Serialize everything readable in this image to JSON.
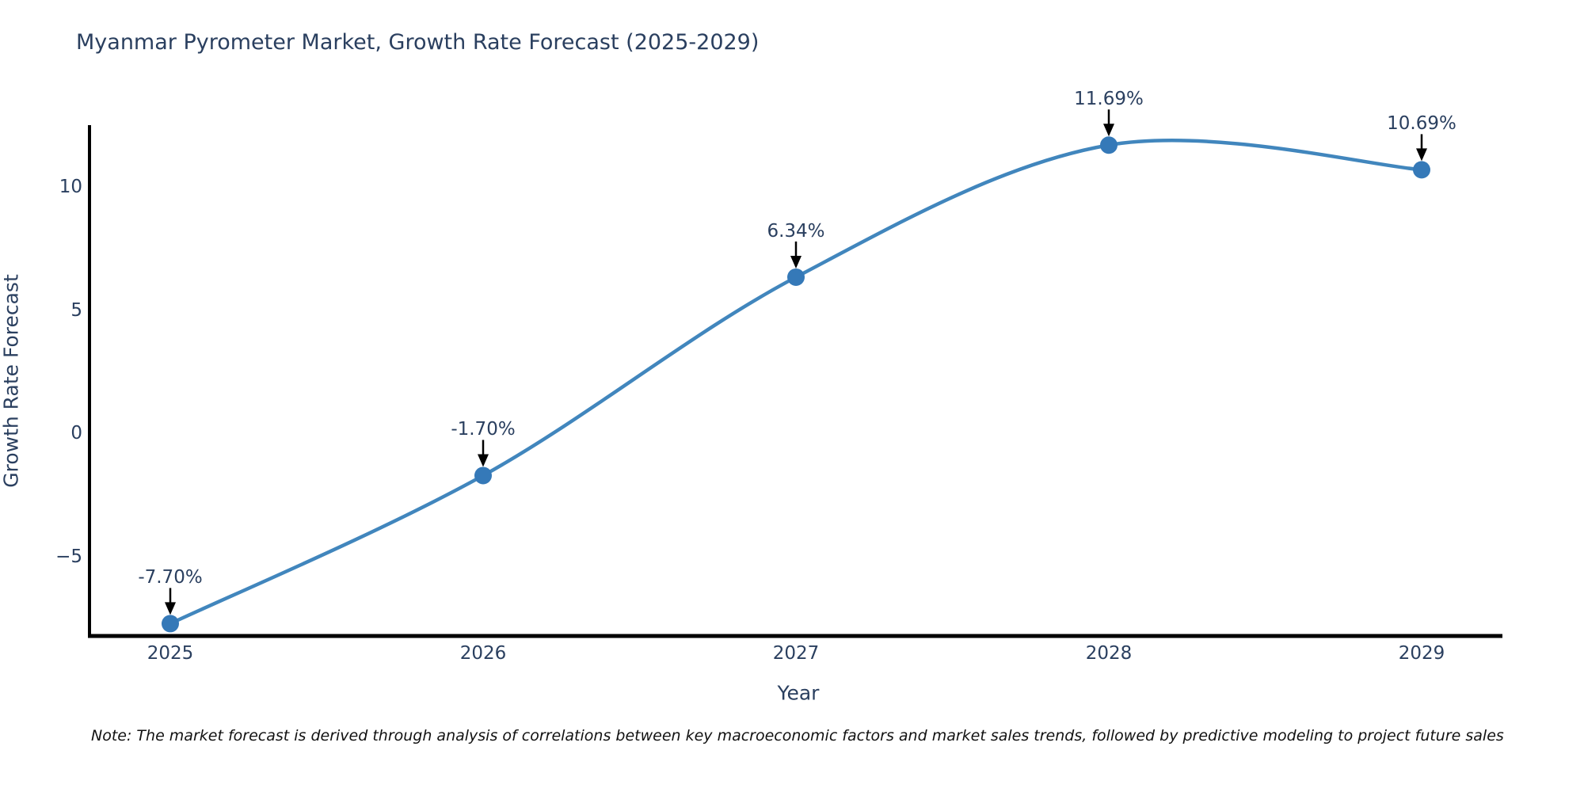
{
  "title": "Myanmar Pyrometer Market, Growth Rate Forecast (2025-2029)",
  "note": "Note: The market forecast is derived through analysis of correlations between key macroeconomic factors and market sales trends, followed by predictive modeling to project future sales",
  "chart_data": {
    "type": "line",
    "title": "Myanmar Pyrometer Market, Growth Rate Forecast (2025-2029)",
    "xlabel": "Year",
    "ylabel": "Growth Rate Forecast",
    "categories": [
      "2025",
      "2026",
      "2027",
      "2028",
      "2029"
    ],
    "values": [
      -7.7,
      -1.7,
      6.34,
      11.69,
      10.69
    ],
    "point_labels": [
      "-7.70%",
      "-1.70%",
      "6.34%",
      "11.69%",
      "10.69%"
    ],
    "ytick_values": [
      10,
      5,
      0,
      -5
    ],
    "ytick_labels": [
      "10",
      "5",
      "0",
      "−5"
    ],
    "ylim": [
      -8.2,
      12.5
    ],
    "line_shape": "spline",
    "grid": false,
    "legend": "none",
    "colors": {
      "line": "#4186bd",
      "marker": "#3579b8",
      "axis": "#000000",
      "text": "#2a3f5f",
      "annotation_arrow": "#000000",
      "background": "#ffffff"
    }
  }
}
